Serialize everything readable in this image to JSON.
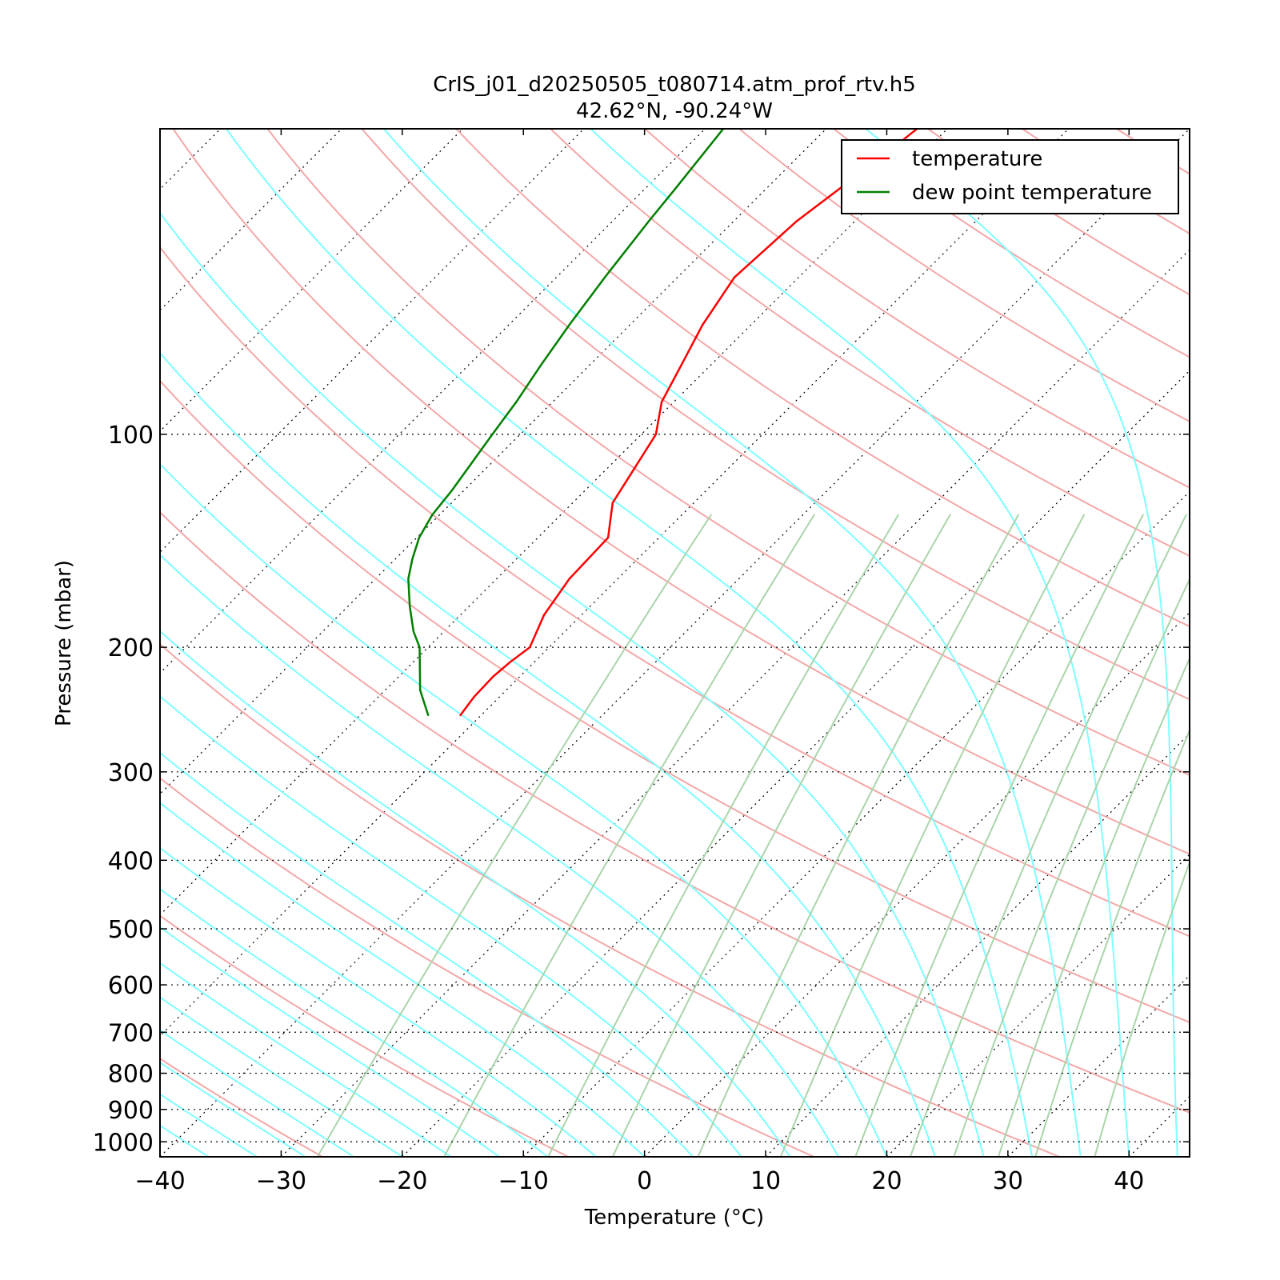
{
  "chart_data": {
    "type": "line",
    "title": "CrIS_j01_d20250505_t080714.atm_prof_rtv.h5",
    "subtitle": "42.62°N, -90.24°W",
    "xlabel": "Temperature (°C)",
    "ylabel": "Pressure (mbar)",
    "xlim": [
      -40,
      45
    ],
    "ylim": [
      1050,
      37
    ],
    "y_scale": "log",
    "skew": true,
    "x_ticks": [
      -40,
      -30,
      -20,
      -10,
      0,
      10,
      20,
      30,
      40
    ],
    "x_tick_labels": [
      "−40",
      "−30",
      "−20",
      "−10",
      "0",
      "10",
      "20",
      "30",
      "40"
    ],
    "y_ticks": [
      100,
      200,
      300,
      400,
      500,
      600,
      700,
      800,
      900,
      1000
    ],
    "y_tick_labels": [
      "100",
      "200",
      "300",
      "400",
      "500",
      "600",
      "700",
      "800",
      "900",
      "1000"
    ],
    "grid": true,
    "legend": {
      "location": "upper right"
    },
    "series": [
      {
        "name": "temperature",
        "color": "#ff0000",
        "points": [
          {
            "p": 250,
            "t": -51.7
          },
          {
            "p": 235,
            "t": -52.1
          },
          {
            "p": 220,
            "t": -52.2
          },
          {
            "p": 210,
            "t": -52.0
          },
          {
            "p": 200,
            "t": -51.6
          },
          {
            "p": 180,
            "t": -53.1
          },
          {
            "p": 160,
            "t": -54.0
          },
          {
            "p": 140,
            "t": -54.2
          },
          {
            "p": 125,
            "t": -56.7
          },
          {
            "p": 100,
            "t": -58.8
          },
          {
            "p": 90,
            "t": -61.0
          },
          {
            "p": 80,
            "t": -62.4
          },
          {
            "p": 70,
            "t": -64.0
          },
          {
            "p": 60,
            "t": -65.3
          },
          {
            "p": 50,
            "t": -64.8
          },
          {
            "p": 40,
            "t": -63.0
          },
          {
            "p": 37,
            "t": -62.5
          }
        ]
      },
      {
        "name": "dew point temperature",
        "color": "#007f00",
        "points": [
          {
            "p": 250,
            "t": -54.3
          },
          {
            "p": 230,
            "t": -57.1
          },
          {
            "p": 200,
            "t": -60.7
          },
          {
            "p": 190,
            "t": -62.5
          },
          {
            "p": 175,
            "t": -64.9
          },
          {
            "p": 160,
            "t": -67.3
          },
          {
            "p": 150,
            "t": -68.6
          },
          {
            "p": 140,
            "t": -69.8
          },
          {
            "p": 130,
            "t": -70.6
          },
          {
            "p": 120,
            "t": -71.0
          },
          {
            "p": 100,
            "t": -72.3
          },
          {
            "p": 90,
            "t": -73.0
          },
          {
            "p": 80,
            "t": -74.0
          },
          {
            "p": 70,
            "t": -75.0
          },
          {
            "p": 60,
            "t": -76.0
          },
          {
            "p": 50,
            "t": -77.0
          },
          {
            "p": 45,
            "t": -77.5
          },
          {
            "p": 37,
            "t": -78.5
          }
        ]
      }
    ],
    "background_lines": {
      "isotherms_color": "#000000",
      "dry_adiabats_color": "#f4a7a7",
      "moist_adiabats_color": "#7fffff",
      "mixing_ratio_color": "#aad4aa"
    }
  }
}
